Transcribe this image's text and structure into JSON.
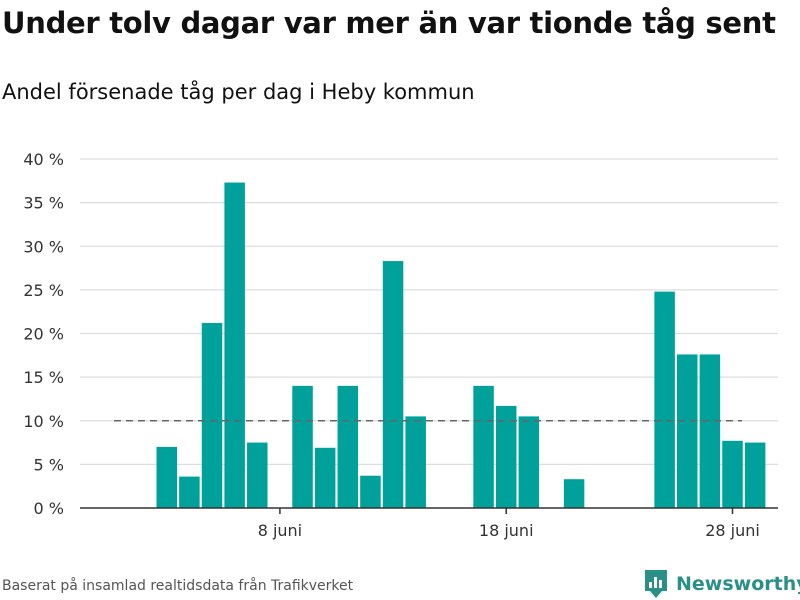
{
  "header": {
    "title": "Under tolv dagar var mer än var tionde tåg sent",
    "subtitle": "Andel försenade tåg per dag i Heby kommun"
  },
  "footer": {
    "source": "Baserat på insamlad realtidsdata från Trafikverket",
    "brand": "Newsworthy"
  },
  "colors": {
    "bar": "#00a19a",
    "grid": "#dddddd",
    "reference_line": "#666666",
    "brand": "#2a8f86"
  },
  "icons": {
    "brand_logo": "bar-chart-logo-icon"
  },
  "chart_data": {
    "type": "bar",
    "x_unit": "day of June",
    "x": [
      1,
      2,
      3,
      4,
      5,
      6,
      7,
      8,
      9,
      10,
      11,
      12,
      13,
      14,
      15,
      16,
      17,
      18,
      19,
      20,
      21,
      22,
      23,
      24,
      25,
      26,
      27,
      28,
      29,
      30
    ],
    "values": [
      0,
      0,
      7,
      3.6,
      21.2,
      37.3,
      7.5,
      0,
      14,
      6.9,
      14,
      3.7,
      28.3,
      10.5,
      0,
      0,
      14,
      11.7,
      10.5,
      0,
      3.3,
      0,
      0,
      0,
      24.8,
      17.6,
      17.6,
      7.7,
      7.5,
      0
    ],
    "reference_line": 10,
    "ylim": [
      0,
      40
    ],
    "y_ticks": [
      0,
      5,
      10,
      15,
      20,
      25,
      30,
      35,
      40
    ],
    "y_tick_labels": [
      "0 %",
      "5 %",
      "10 %",
      "15 %",
      "20 %",
      "25 %",
      "30 %",
      "35 %",
      "40 %"
    ],
    "x_ticks": [
      8,
      18,
      28
    ],
    "x_tick_labels": [
      "8 juni",
      "18 juni",
      "28 juni"
    ],
    "grid": true,
    "legend": false
  }
}
